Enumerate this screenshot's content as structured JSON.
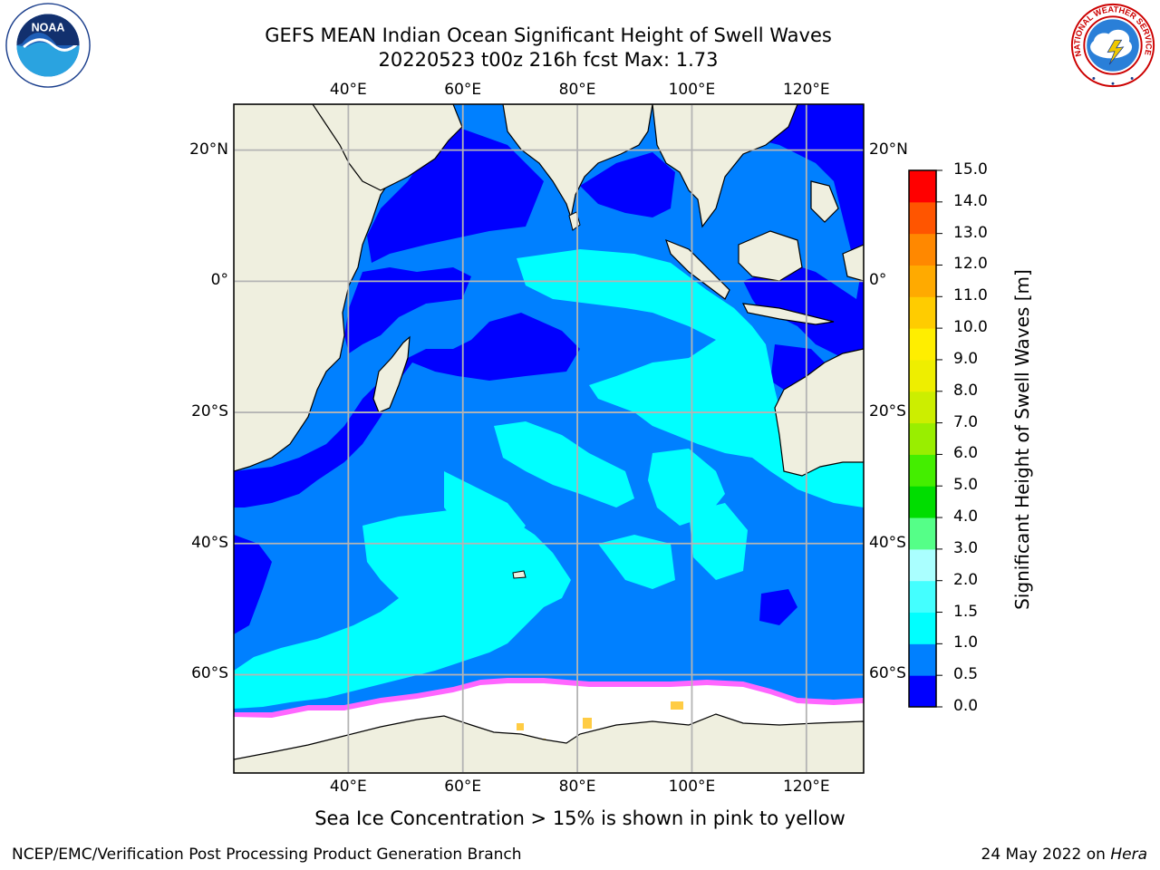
{
  "title": {
    "line1": "GEFS MEAN Indian Ocean Significant Height of Swell Waves",
    "line2": "20220523 t00z 216h fcst   Max: 1.73"
  },
  "logos": {
    "left": {
      "name": "NOAA",
      "text": "NOAA",
      "ring_text": "NATIONAL OCEANIC AND ATMOSPHERIC ADMINISTRATION · U.S. DEPARTMENT OF COMMERCE"
    },
    "right": {
      "name": "National Weather Service",
      "ring_text": "NATIONAL WEATHER SERVICE"
    }
  },
  "map": {
    "lon_labels": [
      "40°E",
      "60°E",
      "80°E",
      "100°E",
      "120°E"
    ],
    "lat_labels": [
      "20°N",
      "0°",
      "20°S",
      "40°S",
      "60°S"
    ],
    "lon_values": [
      40,
      60,
      80,
      100,
      120
    ],
    "lat_values": [
      20,
      0,
      -20,
      -40,
      -60
    ],
    "lon_range": [
      20,
      130
    ],
    "lat_range": [
      -75,
      27
    ],
    "grid": true,
    "colors": {
      "land": "#efefdf",
      "ocean_base": "#0080ff",
      "calm": "#0000ff",
      "swell_1_0": "#00ffff",
      "swell_1_5": "#44ffff",
      "ice_edge_pink": "#ff66ff",
      "ice_yellow": "#ffcc44",
      "ice_white": "#ffffff"
    }
  },
  "colorbar": {
    "label": "Significant Height of Swell Waves [m]",
    "ticks": [
      "0.0",
      "0.5",
      "1.0",
      "1.5",
      "2.0",
      "3.0",
      "4.0",
      "5.0",
      "6.0",
      "7.0",
      "8.0",
      "9.0",
      "10.0",
      "11.0",
      "12.0",
      "13.0",
      "14.0",
      "15.0"
    ],
    "colors": [
      "#0000ff",
      "#0080ff",
      "#00ffff",
      "#44ffff",
      "#aaffff",
      "#55ff88",
      "#00dd00",
      "#44ee00",
      "#99ee00",
      "#ccee00",
      "#eeee00",
      "#ffee00",
      "#ffcc00",
      "#ffaa00",
      "#ff8800",
      "#ff5500",
      "#ff0000"
    ]
  },
  "note": "Sea Ice Concentration > 15% is shown in pink to yellow",
  "footer": {
    "left": "NCEP/EMC/Verification Post Processing Product Generation Branch",
    "right_date": "24 May 2022 on ",
    "right_machine": "Hera"
  }
}
